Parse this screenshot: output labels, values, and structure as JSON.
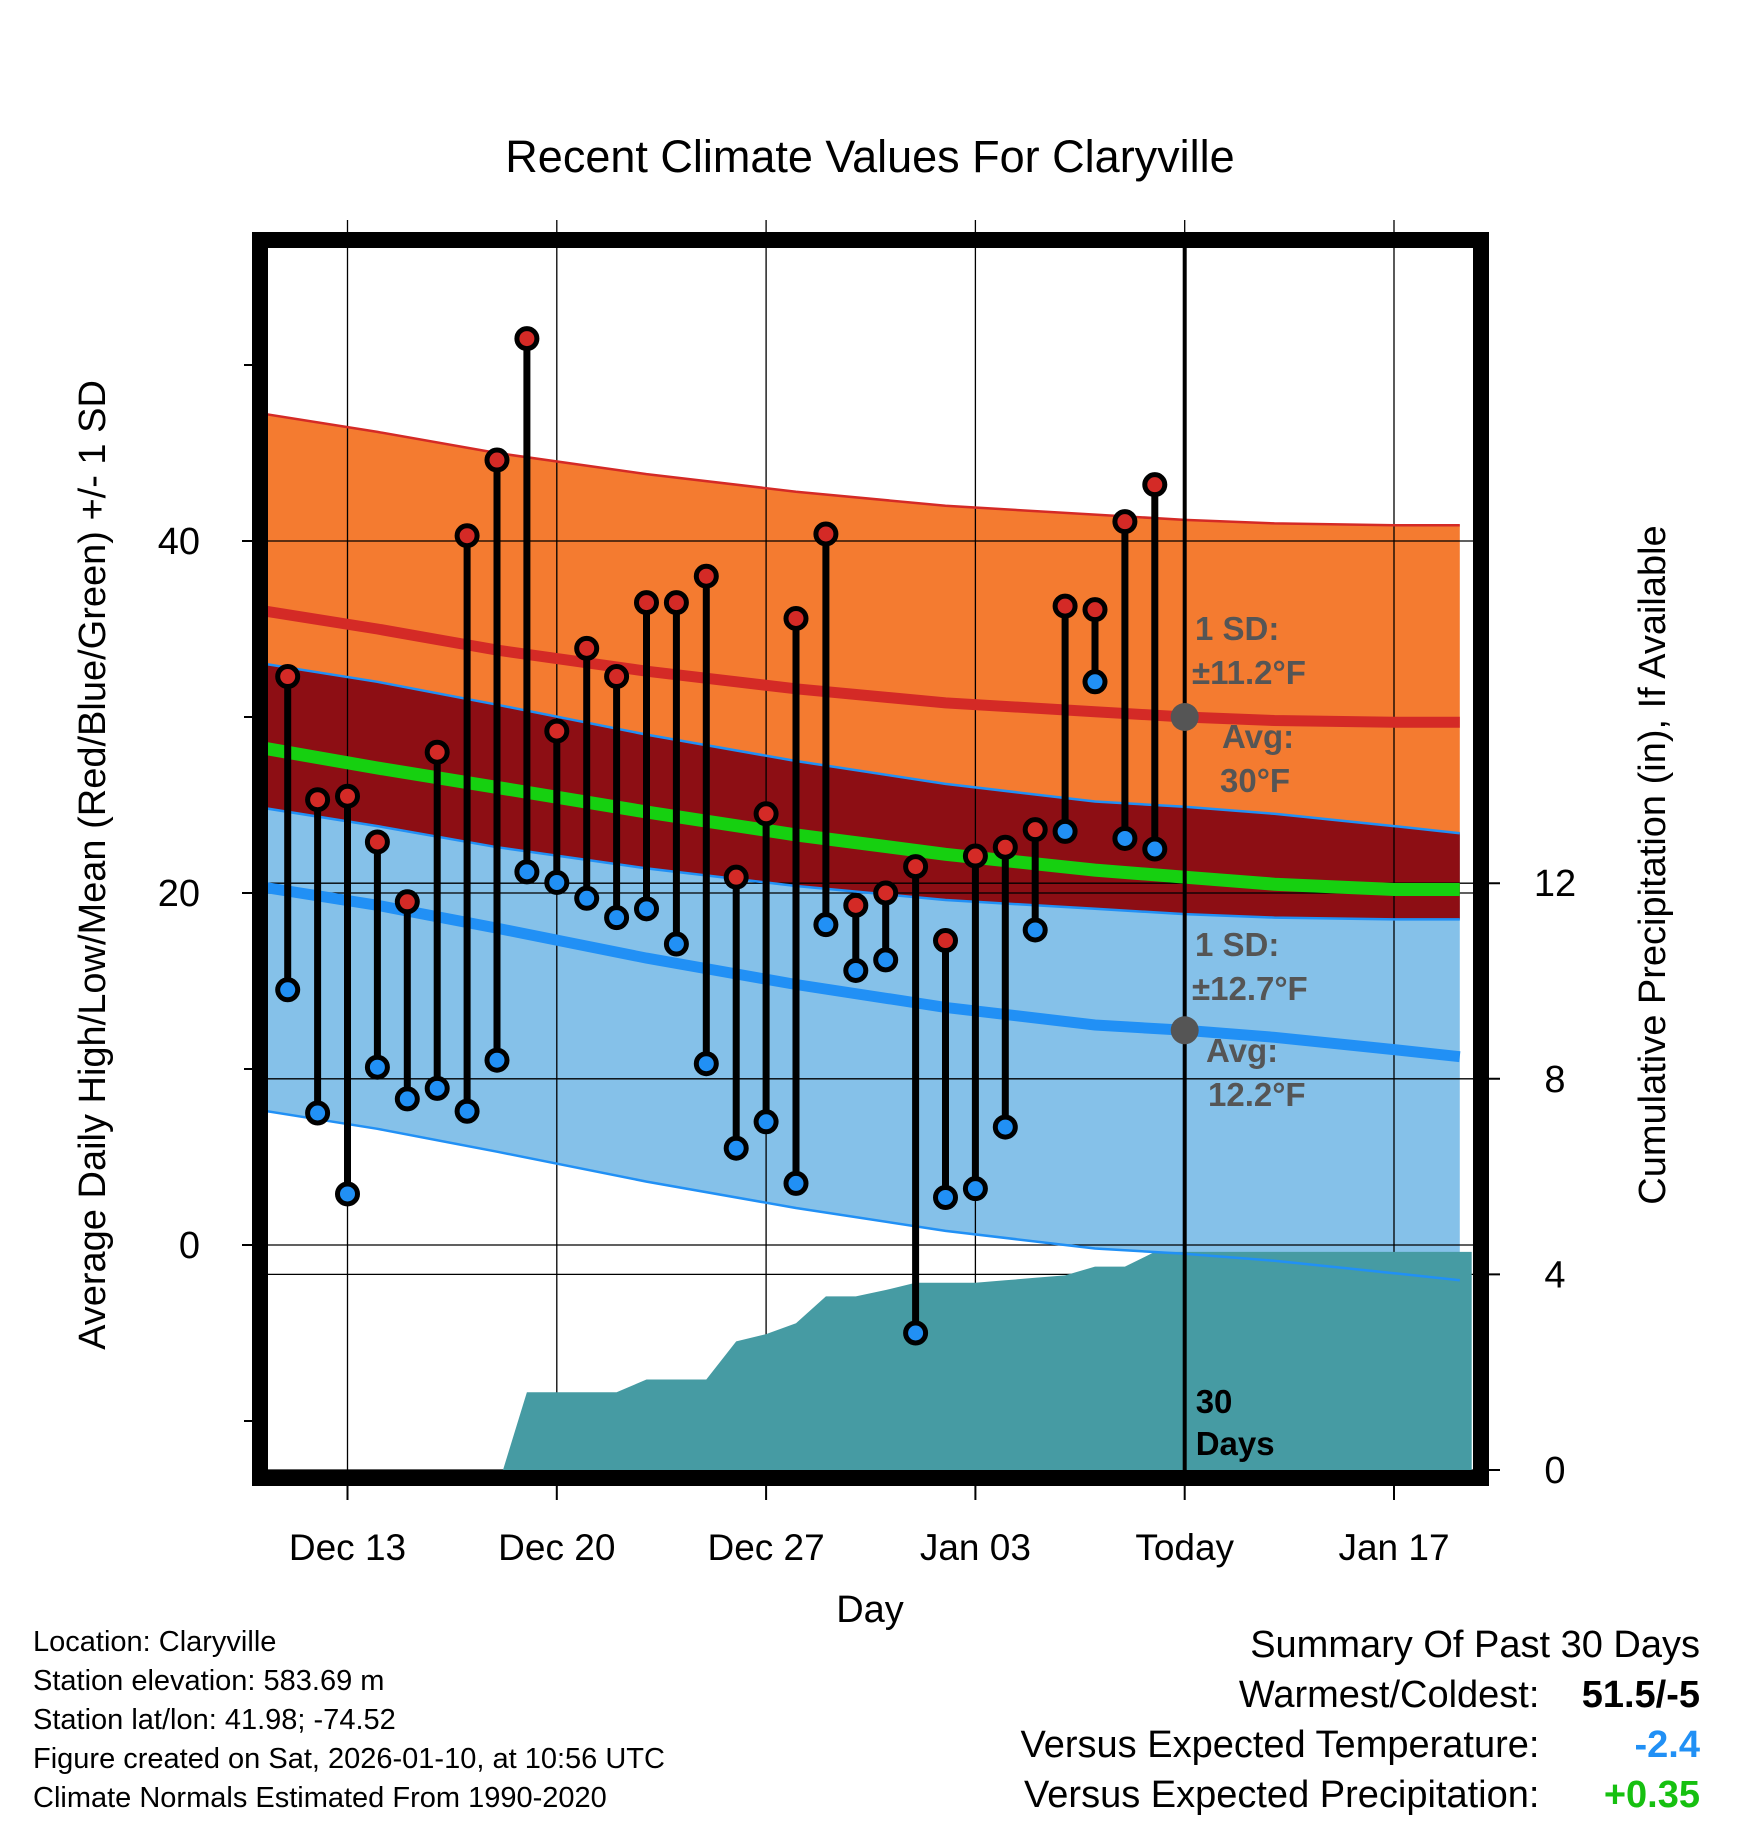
{
  "chart_data": {
    "type": "line",
    "title": "Recent Climate Values For Claryville",
    "xlabel": "Day",
    "ylabel": "Average Daily High/Low/Mean (Red/Blue/Green) +/- 1 SD",
    "y2label": "Cumulative Precipitation (in), If Available",
    "xlim": [
      -3.2,
      37.6
    ],
    "ylim": [
      -12.7,
      57.0
    ],
    "y2lim": [
      0,
      24
    ],
    "x_ticks": [
      {
        "x": 0,
        "label": "Dec 13"
      },
      {
        "x": 7,
        "label": "Dec 20"
      },
      {
        "x": 14,
        "label": "Dec 27"
      },
      {
        "x": 21,
        "label": "Jan 03"
      },
      {
        "x": 28,
        "label": "Today"
      },
      {
        "x": 35,
        "label": "Jan 17"
      }
    ],
    "y_ticks": [
      {
        "y": 0,
        "label": "0"
      },
      {
        "y": 20,
        "label": "20"
      },
      {
        "y": 40,
        "label": "40"
      }
    ],
    "y_minor_ticks": [
      -10,
      10,
      30,
      50
    ],
    "y2_ticks": [
      {
        "y": 0,
        "label": "0"
      },
      {
        "y": 4,
        "label": "4"
      },
      {
        "y": 8,
        "label": "8"
      },
      {
        "y": 12,
        "label": "12"
      }
    ],
    "grid": true,
    "normals": {
      "x": [
        -2.7,
        1,
        5,
        10,
        15,
        20,
        25,
        28,
        31,
        35,
        37.2
      ],
      "high_avg": [
        36.0,
        35.0,
        33.8,
        32.6,
        31.6,
        30.8,
        30.3,
        30.0,
        29.8,
        29.7,
        29.7
      ],
      "high_sd": 11.2,
      "low_avg": [
        20.3,
        19.3,
        18.0,
        16.3,
        14.8,
        13.5,
        12.5,
        12.2,
        11.8,
        11.1,
        10.7
      ],
      "low_sd": 12.7,
      "mean_avg": [
        28.2,
        27.1,
        26.0,
        24.6,
        23.3,
        22.2,
        21.3,
        20.9,
        20.5,
        20.2,
        20.2
      ]
    },
    "daily": {
      "x": [
        -2,
        -1,
        0,
        1,
        2,
        3,
        4,
        5,
        6,
        7,
        8,
        9,
        10,
        11,
        12,
        13,
        14,
        15,
        16,
        17,
        18,
        19,
        20,
        21,
        22,
        23,
        24,
        25,
        26,
        27
      ],
      "high": [
        32.3,
        25.3,
        25.5,
        22.9,
        19.5,
        28.0,
        40.3,
        44.6,
        51.5,
        29.2,
        33.9,
        32.3,
        36.5,
        36.5,
        38.0,
        20.9,
        24.5,
        35.6,
        40.4,
        19.3,
        20.0,
        21.5,
        17.3,
        22.1,
        22.6,
        23.6,
        36.3,
        36.1,
        41.1,
        43.2
      ],
      "low": [
        14.5,
        7.5,
        2.9,
        10.1,
        8.3,
        8.9,
        7.6,
        10.5,
        21.2,
        20.6,
        19.7,
        18.6,
        19.1,
        17.1,
        10.3,
        5.5,
        7.0,
        3.5,
        18.2,
        15.6,
        16.2,
        -5.0,
        2.7,
        3.2,
        6.7,
        17.9,
        23.5,
        32.0,
        23.1,
        22.5
      ]
    },
    "precip": {
      "x": [
        -3.2,
        5.2,
        6.0,
        7,
        8,
        9,
        10,
        11,
        12,
        13,
        14,
        15,
        16,
        17,
        18,
        19,
        20,
        21,
        22,
        23,
        24,
        25,
        26,
        27,
        28,
        37.6
      ],
      "y": [
        0,
        0,
        1.59,
        1.59,
        1.59,
        1.59,
        1.85,
        1.85,
        1.85,
        2.63,
        2.78,
        3.0,
        3.55,
        3.55,
        3.68,
        3.83,
        3.83,
        3.83,
        3.88,
        3.93,
        3.98,
        4.16,
        4.16,
        4.46,
        4.46,
        4.46
      ]
    },
    "today_x": 28,
    "today_label": "30 Days",
    "annotations": {
      "high_sd_label": "1 SD:",
      "high_sd_value": "±11.2°F",
      "high_avg_label": "Avg:",
      "high_avg_value": "30°F",
      "low_sd_label": "1 SD:",
      "low_sd_value": "±12.7°F",
      "low_avg_label": "Avg:",
      "low_avg_value": "12.2°F"
    },
    "colors": {
      "high_band": "#f47b30",
      "high_line": "#d42a26",
      "overlap_band": "#8d0e14",
      "low_band": "#85c1e9",
      "low_line": "#2190f5",
      "mean_line": "#16d010",
      "precip": "#469ba3",
      "marker_high": "#d42a26",
      "marker_low": "#2190f5",
      "annotation": "#555555"
    }
  },
  "info": {
    "location": "Location: Claryville",
    "elevation": "Station elevation: 583.69 m",
    "latlon": "Station lat/lon: 41.98; -74.52",
    "created": "Figure created on Sat, 2026-01-10, at 10:56 UTC",
    "normals": "Climate Normals Estimated From 1990-2020"
  },
  "summary": {
    "title": "Summary Of Past 30 Days",
    "warm_cold_label": "Warmest/Coldest:",
    "warm_cold_value": "51.5/-5",
    "temp_label": "Versus Expected Temperature:",
    "temp_value": "-2.4",
    "temp_color": "#2190f5",
    "precip_label": "Versus Expected Precipitation:",
    "precip_value": "+0.35",
    "precip_color": "#16c010"
  }
}
